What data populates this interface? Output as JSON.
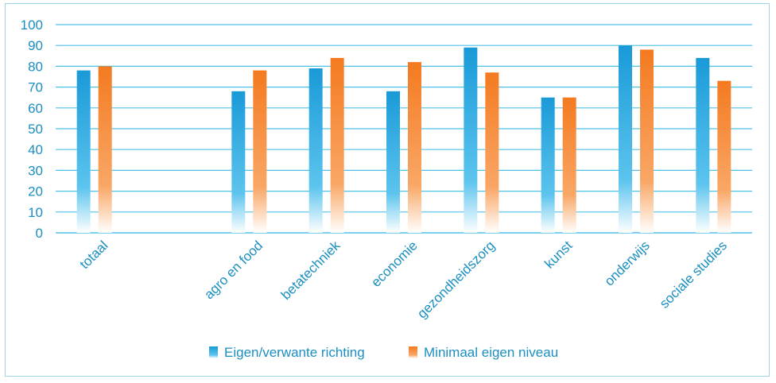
{
  "chart_data": {
    "type": "bar",
    "categories": [
      "totaal",
      "",
      "agro en food",
      "betatechniek",
      "economie",
      "gezondheidszorg",
      "kunst",
      "onderwijs",
      "sociale studies"
    ],
    "series": [
      {
        "name": "Eigen/verwante richting",
        "values": [
          78,
          null,
          68,
          79,
          68,
          89,
          65,
          90,
          84
        ]
      },
      {
        "name": "Minimaal eigen niveau",
        "values": [
          80,
          null,
          78,
          84,
          82,
          77,
          65,
          88,
          73
        ]
      }
    ],
    "ylim": [
      0,
      100
    ],
    "yticks": [
      "0",
      "10",
      "20",
      "30",
      "40",
      "50",
      "60",
      "70",
      "80",
      "90",
      "100"
    ],
    "grid": true,
    "legend": "bottom",
    "colors": {
      "series1": "#1a9ad8",
      "series2": "#f47a20",
      "text": "#1b8fc0",
      "grid": "#4fc1e9"
    }
  }
}
